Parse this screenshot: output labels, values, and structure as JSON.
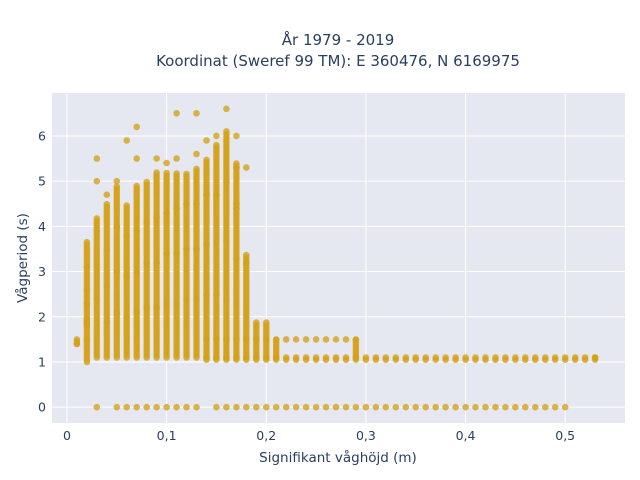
{
  "chart_data": {
    "type": "scatter",
    "title": "År 1979 - 2019",
    "subtitle": "Koordinat (Sweref 99 TM): E 360476, N 6169975",
    "xlabel": "Signifikant våghöjd (m)",
    "ylabel": "Vågperiod (s)",
    "xlim": [
      -0.015,
      0.56
    ],
    "ylim": [
      -0.35,
      6.95
    ],
    "xticks": [
      0,
      0.1,
      0.2,
      0.3,
      0.4,
      0.5
    ],
    "xtick_labels": [
      "0",
      "0,1",
      "0,2",
      "0,3",
      "0,4",
      "0,5"
    ],
    "yticks": [
      0,
      1,
      2,
      3,
      4,
      5,
      6
    ],
    "ytick_labels": [
      "0",
      "1",
      "2",
      "3",
      "4",
      "5",
      "6"
    ],
    "grid": true,
    "colors": {
      "marker": "#d4a017",
      "plot_bg": "#e5e8f1",
      "grid": "#ffffff",
      "text": "#2a3f5f"
    },
    "columns": [
      {
        "x": 0.01,
        "y": [
          1.4,
          1.5
        ]
      },
      {
        "x": 0.02,
        "y": [
          1.0,
          1.5,
          2.3,
          2.6,
          3.1,
          3.7
        ]
      },
      {
        "x": 0.02,
        "y": [
          1.8,
          1.9,
          2.0
        ]
      },
      {
        "x": 0.03,
        "y": [
          1.1,
          1.7,
          2.4,
          3.0,
          3.9,
          4.2
        ]
      },
      {
        "x": 0.04,
        "y": [
          1.1,
          1.9,
          2.7,
          3.5,
          4.5
        ]
      },
      {
        "x": 0.05,
        "y": [
          1.1,
          2.1,
          3.0,
          4.0,
          4.9
        ]
      },
      {
        "x": 0.06,
        "y": [
          1.1,
          2.0,
          2.9,
          3.8,
          4.5
        ]
      },
      {
        "x": 0.07,
        "y": [
          1.1,
          2.1,
          3.0,
          3.9,
          4.9
        ]
      },
      {
        "x": 0.08,
        "y": [
          1.1,
          2.2,
          3.2,
          4.1,
          5.0
        ]
      },
      {
        "x": 0.09,
        "y": [
          1.1,
          2.2,
          3.2,
          4.2,
          5.2
        ]
      },
      {
        "x": 0.1,
        "y": [
          1.1,
          2.3,
          3.4,
          4.3,
          5.2
        ]
      },
      {
        "x": 0.11,
        "y": [
          1.1,
          2.3,
          3.4,
          4.4,
          5.2
        ]
      },
      {
        "x": 0.12,
        "y": [
          1.1,
          2.4,
          3.5,
          4.5,
          5.2
        ]
      },
      {
        "x": 0.13,
        "y": [
          1.1,
          2.4,
          3.5,
          4.5,
          5.3
        ]
      },
      {
        "x": 0.14,
        "y": [
          1.1,
          2.5,
          3.6,
          4.7,
          5.5
        ]
      },
      {
        "x": 0.15,
        "y": [
          1.1,
          2.5,
          3.7,
          4.7,
          5.8
        ]
      },
      {
        "x": 0.16,
        "y": [
          1.1,
          2.4,
          3.7,
          5.0,
          6.1
        ]
      },
      {
        "x": 0.17,
        "y": [
          1.1,
          2.3,
          3.3,
          4.4,
          5.4
        ]
      },
      {
        "x": 0.18,
        "y": [
          1.1,
          3.2,
          3.4
        ]
      },
      {
        "x": 0.19,
        "y": [
          1.1,
          1.9
        ]
      },
      {
        "x": 0.2,
        "y": [
          1.1,
          1.9
        ]
      },
      {
        "x": 0.21,
        "y": [
          1.1,
          1.5
        ]
      },
      {
        "x": 0.29,
        "y": [
          1.1,
          1.5
        ]
      },
      {
        "x": 0.53,
        "y": [
          1.1
        ]
      }
    ],
    "points": [
      {
        "x": 0.01,
        "y": 1.4
      },
      {
        "x": 0.01,
        "y": 1.5
      },
      {
        "x": 0.03,
        "y": 5.5
      },
      {
        "x": 0.03,
        "y": 5.0
      },
      {
        "x": 0.04,
        "y": 4.7
      },
      {
        "x": 0.05,
        "y": 5.0
      },
      {
        "x": 0.06,
        "y": 5.9
      },
      {
        "x": 0.07,
        "y": 5.5
      },
      {
        "x": 0.07,
        "y": 6.2
      },
      {
        "x": 0.09,
        "y": 5.5
      },
      {
        "x": 0.1,
        "y": 5.4
      },
      {
        "x": 0.11,
        "y": 5.5
      },
      {
        "x": 0.11,
        "y": 6.5
      },
      {
        "x": 0.13,
        "y": 6.5
      },
      {
        "x": 0.13,
        "y": 5.6
      },
      {
        "x": 0.14,
        "y": 5.9
      },
      {
        "x": 0.15,
        "y": 6.0
      },
      {
        "x": 0.16,
        "y": 6.6
      },
      {
        "x": 0.17,
        "y": 6.0
      },
      {
        "x": 0.17,
        "y": 5.3
      },
      {
        "x": 0.18,
        "y": 5.3
      },
      {
        "x": 0.17,
        "y": 4.5
      },
      {
        "x": 0.03,
        "y": 0
      },
      {
        "x": 0.05,
        "y": 0
      },
      {
        "x": 0.06,
        "y": 0
      },
      {
        "x": 0.07,
        "y": 0
      },
      {
        "x": 0.08,
        "y": 0
      },
      {
        "x": 0.09,
        "y": 0
      },
      {
        "x": 0.1,
        "y": 0
      },
      {
        "x": 0.11,
        "y": 0
      },
      {
        "x": 0.12,
        "y": 0
      },
      {
        "x": 0.13,
        "y": 0
      },
      {
        "x": 0.15,
        "y": 0
      }
    ],
    "rows": [
      {
        "y": 1.1,
        "x_from": 0.14,
        "x_to": 0.53
      },
      {
        "y": 1.5,
        "x_from": 0.14,
        "x_to": 0.29
      },
      {
        "y": 0,
        "x_from": 0.16,
        "x_to": 0.5
      }
    ]
  }
}
